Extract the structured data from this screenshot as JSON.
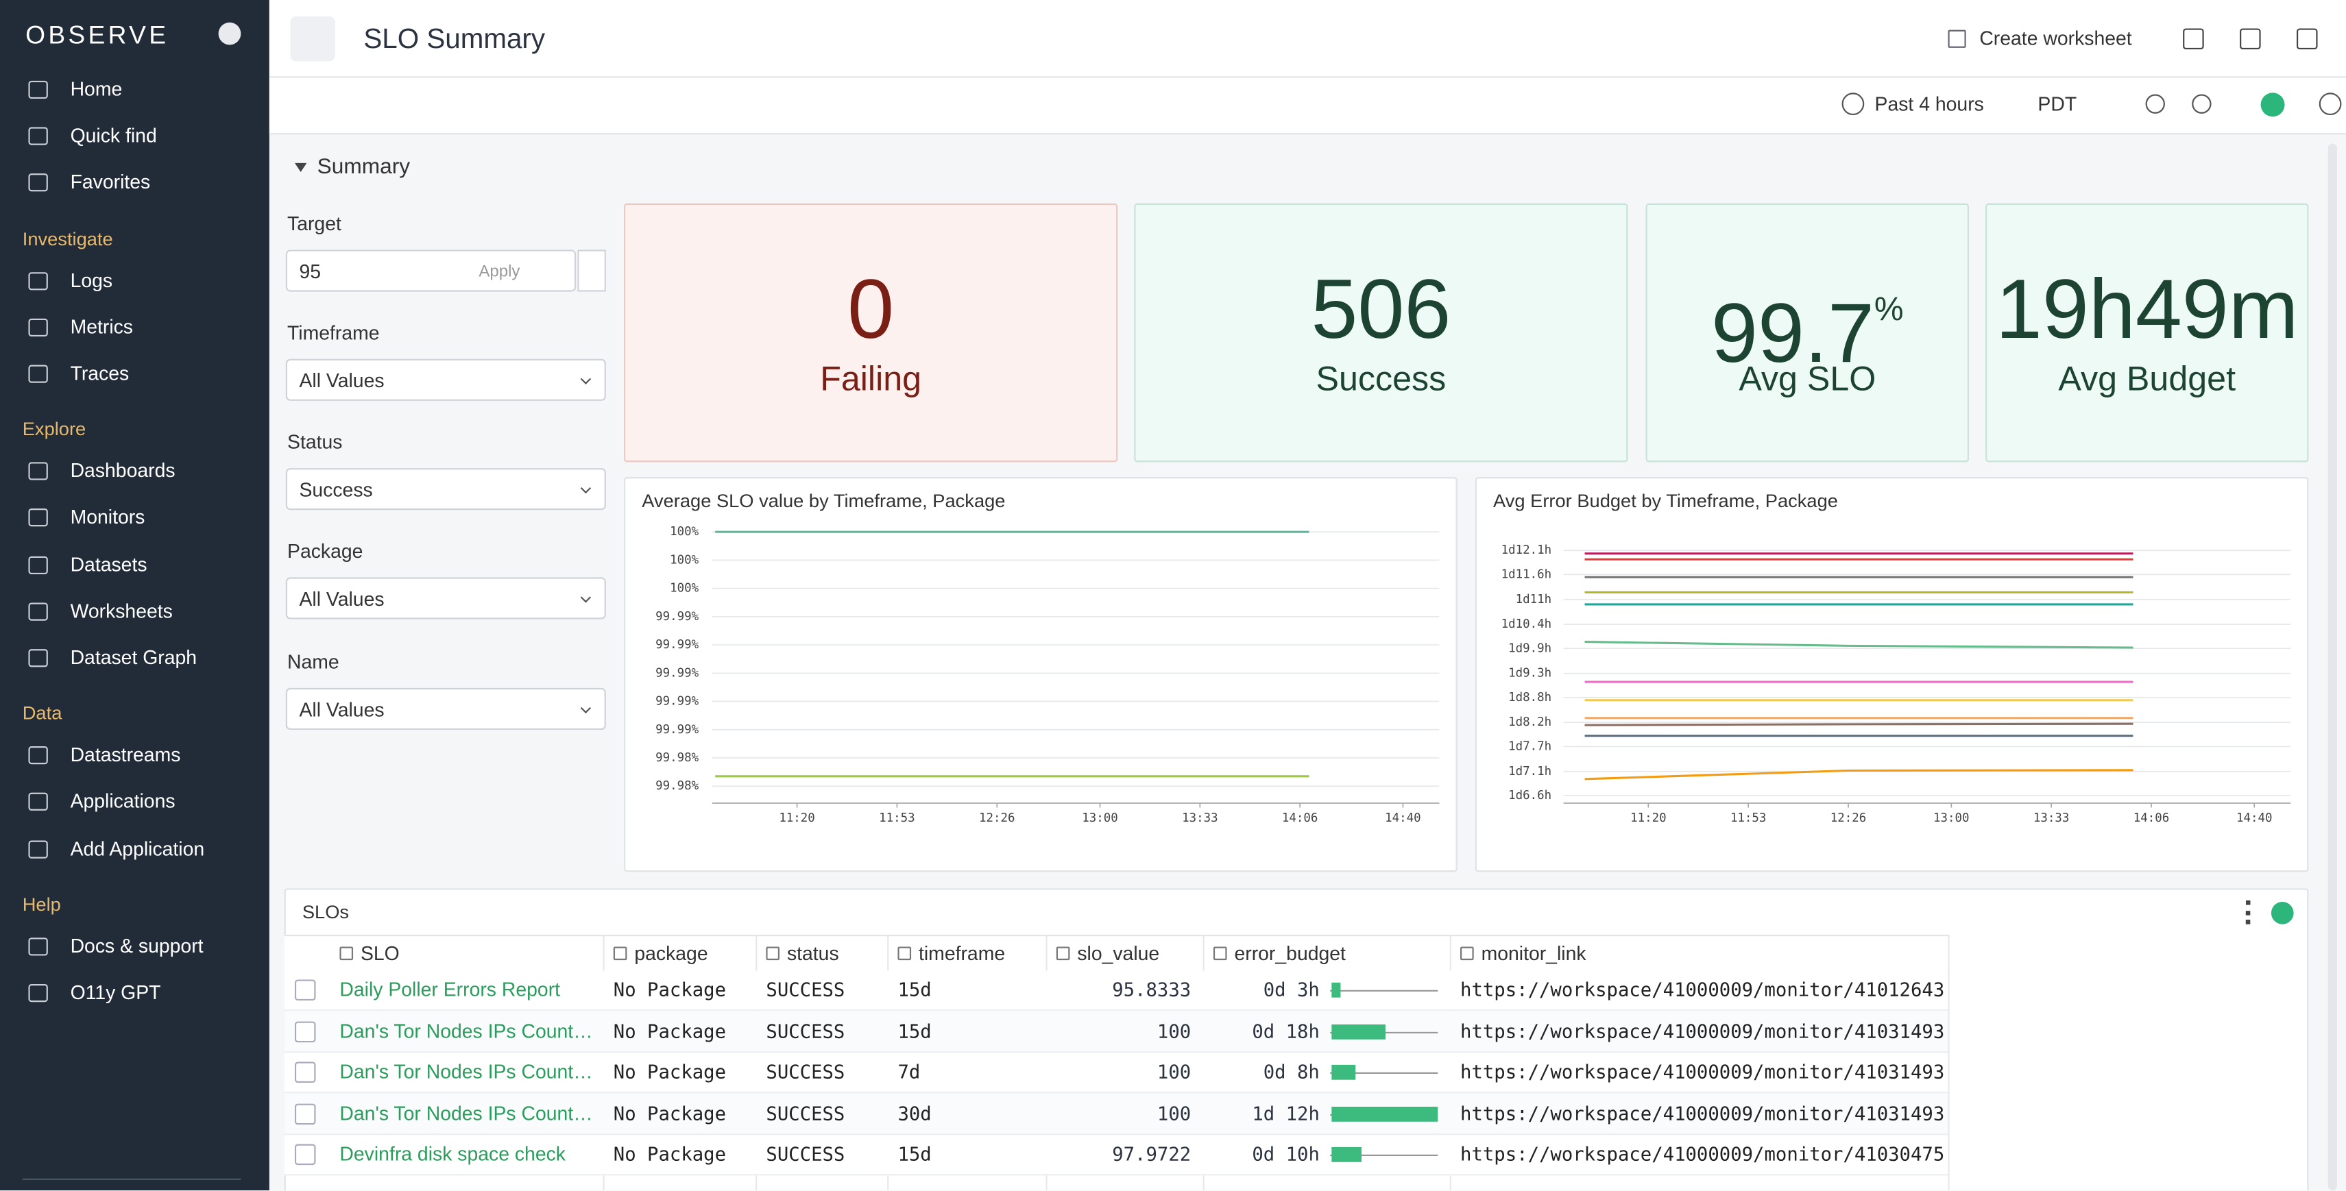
{
  "sidebar": {
    "brand": "OBSERVE",
    "nav": [
      "Home",
      "Quick find",
      "Favorites"
    ],
    "sections": [
      {
        "title": "Investigate",
        "items": [
          "Logs",
          "Metrics",
          "Traces"
        ]
      },
      {
        "title": "Explore",
        "items": [
          "Dashboards",
          "Monitors",
          "Datasets",
          "Worksheets",
          "Dataset Graph"
        ]
      },
      {
        "title": "Data",
        "items": [
          "Datastreams",
          "Applications",
          "Add Application"
        ]
      },
      {
        "title": "Help",
        "items": [
          "Docs & support",
          "O11y GPT"
        ]
      }
    ]
  },
  "header": {
    "title": "SLO Summary",
    "create_worksheet": "Create worksheet",
    "time_range": "Past 4 hours",
    "timezone": "PDT"
  },
  "summary": {
    "title": "Summary",
    "filters": [
      {
        "label": "Target",
        "value": "95",
        "button": "Apply"
      },
      {
        "label": "Timeframe",
        "value": "All Values"
      },
      {
        "label": "Status",
        "value": "Success"
      },
      {
        "label": "Package",
        "value": "All Values"
      },
      {
        "label": "Name",
        "value": "All Values"
      }
    ],
    "tiles": [
      {
        "value": 0,
        "label": "Failing"
      },
      {
        "value": 506,
        "label": "Success"
      },
      {
        "value": 99.7,
        "unit": "%",
        "label": "Avg SLO"
      },
      {
        "value": "19h49m",
        "label": "Avg Budget"
      }
    ]
  },
  "chart_data": [
    {
      "type": "line",
      "title": "Average SLO value by Timeframe, Package",
      "grid": true,
      "x": [
        653,
        746,
        849
      ],
      "xlim": [
        652,
        892
      ],
      "xticks": [
        {
          "value": 680,
          "label": "11:20"
        },
        {
          "value": 713,
          "label": "11:53"
        },
        {
          "value": 746,
          "label": "12:26"
        },
        {
          "value": 780,
          "label": "13:00"
        },
        {
          "value": 813,
          "label": "13:33"
        },
        {
          "value": 846,
          "label": "14:06"
        },
        {
          "value": 880,
          "label": "14:40"
        }
      ],
      "ylim": [
        99.9808,
        100.0006
      ],
      "yticks": [
        {
          "value": 100.0,
          "label": "100%"
        },
        {
          "value": 99.998,
          "label": "100%"
        },
        {
          "value": 99.996,
          "label": "100%"
        },
        {
          "value": 99.994,
          "label": "99.99%"
        },
        {
          "value": 99.992,
          "label": "99.99%"
        },
        {
          "value": 99.99,
          "label": "99.99%"
        },
        {
          "value": 99.988,
          "label": "99.99%"
        },
        {
          "value": 99.986,
          "label": "99.99%"
        },
        {
          "value": 99.984,
          "label": "99.98%"
        },
        {
          "value": 99.982,
          "label": "99.98%"
        }
      ],
      "series": [
        {
          "color": "#5fb89a",
          "values": [
            100.0,
            100.0,
            100.0
          ]
        },
        {
          "color": "#9cc93f",
          "values": [
            99.9827,
            99.9827,
            99.9827
          ]
        }
      ]
    },
    {
      "type": "line",
      "title": "Avg Error Budget by Timeframe, Package",
      "grid": true,
      "x": [
        659,
        746,
        840
      ],
      "xlim": [
        652,
        892
      ],
      "xticks": [
        {
          "value": 680,
          "label": "11:20"
        },
        {
          "value": 713,
          "label": "11:53"
        },
        {
          "value": 746,
          "label": "12:26"
        },
        {
          "value": 780,
          "label": "13:00"
        },
        {
          "value": 813,
          "label": "13:33"
        },
        {
          "value": 846,
          "label": "14:06"
        },
        {
          "value": 880,
          "label": "14:40"
        }
      ],
      "ylim": [
        30.43,
        36.37
      ],
      "yticks": [
        {
          "value": 36.1,
          "label": "1d12.1h"
        },
        {
          "value": 35.56,
          "label": "1d11.6h"
        },
        {
          "value": 35.0,
          "label": "1d11h"
        },
        {
          "value": 34.44,
          "label": "1d10.4h"
        },
        {
          "value": 33.9,
          "label": "1d9.9h"
        },
        {
          "value": 33.34,
          "label": "1d9.3h"
        },
        {
          "value": 32.8,
          "label": "1d8.8h"
        },
        {
          "value": 32.24,
          "label": "1d8.2h"
        },
        {
          "value": 31.7,
          "label": "1d7.7h"
        },
        {
          "value": 31.14,
          "label": "1d7.1h"
        },
        {
          "value": 30.6,
          "label": "1d6.6h"
        }
      ],
      "series": [
        {
          "color": "#c2185b",
          "values": [
            36.03,
            36.03,
            36.03
          ]
        },
        {
          "color": "#e53935",
          "values": [
            35.9,
            35.9,
            35.9
          ]
        },
        {
          "color": "#757575",
          "values": [
            35.5,
            35.5,
            35.5
          ]
        },
        {
          "color": "#b5b52a",
          "values": [
            35.16,
            35.16,
            35.16
          ]
        },
        {
          "color": "#26a69a",
          "values": [
            34.89,
            34.89,
            34.89
          ]
        },
        {
          "color": "#66bb8a",
          "values": [
            34.05,
            33.96,
            33.92
          ]
        },
        {
          "color": "#ec6fc4",
          "values": [
            33.15,
            33.15,
            33.15
          ]
        },
        {
          "color": "#f2c94c",
          "values": [
            32.74,
            32.74,
            32.74
          ]
        },
        {
          "color": "#f0a868",
          "values": [
            32.34,
            32.34,
            32.34
          ]
        },
        {
          "color": "#8d6e63",
          "values": [
            32.18,
            32.2,
            32.21
          ]
        },
        {
          "color": "#5c6b7a",
          "values": [
            31.94,
            31.94,
            31.94
          ]
        },
        {
          "color": "#f39c12",
          "values": [
            30.97,
            31.16,
            31.17
          ]
        }
      ]
    }
  ],
  "table": {
    "title": "SLOs",
    "columns": [
      "SLO",
      "package",
      "status",
      "timeframe",
      "slo_value",
      "error_budget",
      "monitor_link"
    ],
    "rows": [
      [
        "Daily Poller Errors Report",
        "No Package",
        "SUCCESS",
        "15d",
        95.8333,
        {
          "value": 3,
          "label": "0d 3h"
        },
        "https://workspace/41000009/monitor/41012643"
      ],
      [
        "Dan's Tor Nodes IPs Count…",
        "No Package",
        "SUCCESS",
        "15d",
        100,
        {
          "value": 18,
          "label": "0d 18h"
        },
        "https://workspace/41000009/monitor/41031493"
      ],
      [
        "Dan's Tor Nodes IPs Count…",
        "No Package",
        "SUCCESS",
        "7d",
        100,
        {
          "value": 8,
          "label": "0d 8h"
        },
        "https://workspace/41000009/monitor/41031493"
      ],
      [
        "Dan's Tor Nodes IPs Count…",
        "No Package",
        "SUCCESS",
        "30d",
        100,
        {
          "value": 36,
          "label": "1d 12h"
        },
        "https://workspace/41000009/monitor/41031493"
      ],
      [
        "Devinfra disk space check",
        "No Package",
        "SUCCESS",
        "15d",
        97.9722,
        {
          "value": 10,
          "label": "0d 10h"
        },
        "https://workspace/41000009/monitor/41030475"
      ]
    ]
  }
}
